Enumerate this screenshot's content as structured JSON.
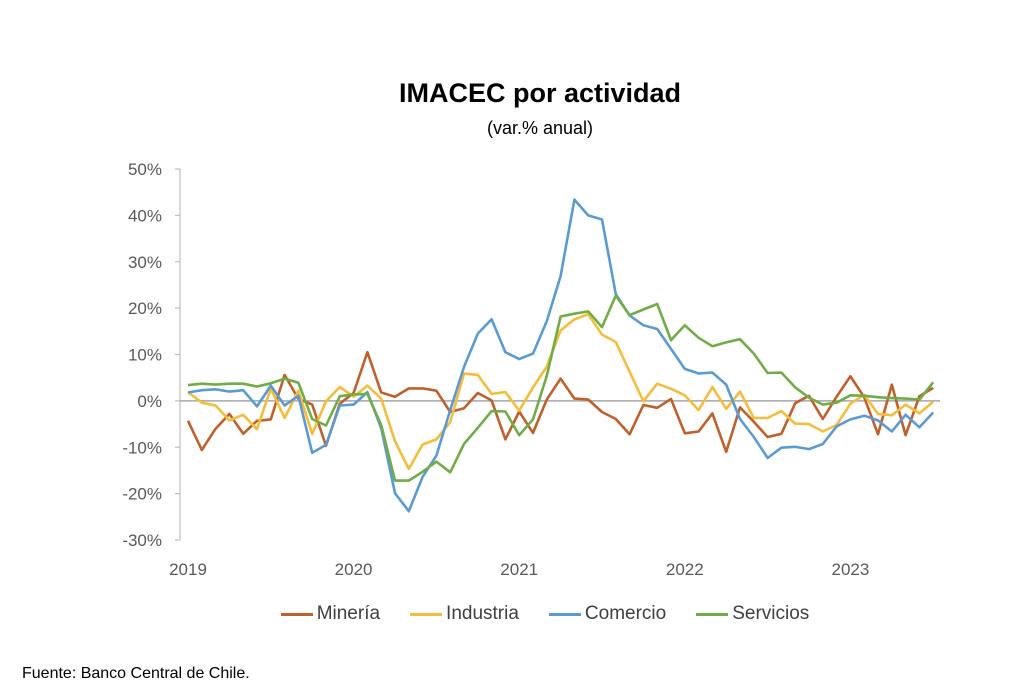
{
  "chart_data": {
    "type": "line",
    "title": "IMACEC por actividad",
    "subtitle": "(var.% anual)",
    "xlabel": "",
    "ylabel": "",
    "ylim": [
      -30,
      50
    ],
    "yticks": [
      "50%",
      "40%",
      "30%",
      "20%",
      "10%",
      "0%",
      "-10%",
      "-20%",
      "-30%"
    ],
    "ytick_values": [
      50,
      40,
      30,
      20,
      10,
      0,
      -10,
      -20,
      -30
    ],
    "xticks": [
      "2019",
      "2020",
      "2021",
      "2022",
      "2023"
    ],
    "xtick_month_index": [
      0,
      12,
      24,
      36,
      48
    ],
    "x_description": "monthly, Jan 2019 to Jul 2023",
    "grid": false,
    "legend_position": "bottom",
    "series": [
      {
        "name": "Minería",
        "color": "#C0602B",
        "values": [
          -4.3,
          -10.6,
          -6.0,
          -2.8,
          -7.1,
          -4.3,
          -4.0,
          5.6,
          0.4,
          -0.8,
          -9.7,
          -0.6,
          1.7,
          10.5,
          1.8,
          0.9,
          2.7,
          2.7,
          2.2,
          -2.4,
          -1.6,
          1.7,
          0.1,
          -8.3,
          -2.3,
          -6.9,
          0.3,
          4.8,
          0.5,
          0.3,
          -2.4,
          -3.9,
          -7.2,
          -0.9,
          -1.5,
          0.4,
          -7.0,
          -6.6,
          -2.7,
          -11.0,
          -1.4,
          -4.5,
          -7.8,
          -7.1,
          -0.5,
          1.1,
          -3.9,
          0.9,
          5.3,
          0.8,
          -7.2,
          3.5,
          -7.4,
          1.0,
          2.8
        ]
      },
      {
        "name": "Industria",
        "color": "#F5BD3B",
        "values": [
          1.9,
          -0.4,
          -1.0,
          -4.2,
          -3.0,
          -6.1,
          2.7,
          -3.7,
          2.2,
          -7.1,
          -0.1,
          3.0,
          0.9,
          3.3,
          0.5,
          -8.7,
          -14.7,
          -9.4,
          -8.3,
          -4.6,
          5.9,
          5.6,
          1.5,
          1.9,
          -2.1,
          2.9,
          7.4,
          15.2,
          17.6,
          18.7,
          14.3,
          12.7,
          6.3,
          -0.1,
          3.7,
          2.6,
          1.2,
          -2.0,
          3.0,
          -1.7,
          2.0,
          -3.7,
          -3.7,
          -2.2,
          -4.9,
          -5.0,
          -6.6,
          -5.2,
          -0.6,
          1.3,
          -2.8,
          -3.1,
          -0.8,
          -2.7,
          -0.2
        ]
      },
      {
        "name": "Comercio",
        "color": "#5B9BD5",
        "values": [
          1.8,
          2.3,
          2.5,
          2.0,
          2.3,
          -1.2,
          3.3,
          -1.0,
          1.1,
          -11.2,
          -9.5,
          -1.0,
          -0.8,
          1.9,
          -5.9,
          -19.9,
          -23.8,
          -16.4,
          -11.8,
          -2.0,
          7.3,
          14.5,
          17.6,
          10.5,
          9.0,
          10.2,
          17.2,
          26.9,
          43.4,
          40.0,
          39.1,
          23.0,
          18.4,
          16.3,
          15.5,
          11.2,
          6.9,
          5.9,
          6.1,
          3.5,
          -3.9,
          -7.8,
          -12.3,
          -10.1,
          -9.9,
          -10.4,
          -9.3,
          -5.5,
          -4.0,
          -3.2,
          -4.2,
          -6.6,
          -3.0,
          -5.7,
          -2.5
        ]
      },
      {
        "name": "Servicios",
        "color": "#70AD47",
        "values": [
          3.4,
          3.7,
          3.5,
          3.7,
          3.7,
          3.1,
          3.8,
          4.8,
          3.9,
          -3.9,
          -5.3,
          1.0,
          1.4,
          1.5,
          -5.2,
          -17.2,
          -17.2,
          -15.3,
          -13.1,
          -15.4,
          -9.3,
          -5.8,
          -2.2,
          -2.3,
          -7.4,
          -4.0,
          5.4,
          18.2,
          18.8,
          19.3,
          15.9,
          22.7,
          18.5,
          19.7,
          20.9,
          13.1,
          16.3,
          13.6,
          11.8,
          12.6,
          13.3,
          10.2,
          6.0,
          6.1,
          2.9,
          0.7,
          -0.8,
          -0.4,
          1.2,
          1.1,
          0.8,
          0.6,
          0.5,
          0.3,
          4.0
        ]
      }
    ]
  },
  "source": "Fuente: Banco Central de Chile."
}
